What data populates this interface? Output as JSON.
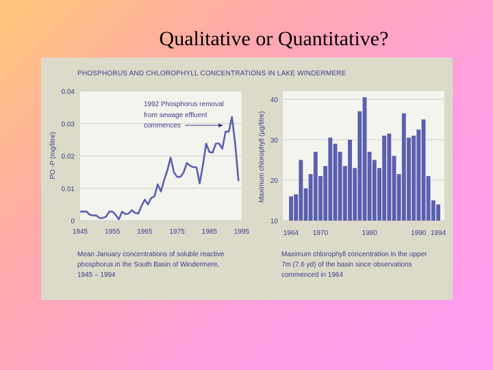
{
  "slide": {
    "title": "Qualitative or Quantitative?"
  },
  "figure": {
    "header": "PHOSPHORUS AND CHLOROPHYLL CONCENTRATIONS IN LAKE WINDERMERE"
  },
  "colors": {
    "series": "#5a5fb0",
    "text": "#3c3c8a",
    "panel": "#dcdbc9",
    "plot_bg": "#f4f4ee",
    "grid": "#cfcfc8"
  },
  "chart_data": [
    {
      "type": "line",
      "ylabel": "PO -P (mg/litre)",
      "ylim": [
        0,
        0.04
      ],
      "xlim": [
        1945,
        1995
      ],
      "x_ticks": [
        "1945",
        "1955",
        "1965",
        "1975",
        "1985",
        "1995"
      ],
      "y_ticks": [
        "0",
        "0.01",
        "0.02",
        "0.03",
        "0.04"
      ],
      "annotation": [
        "1992 Phosphorus removal",
        "from sewage effluent",
        "commences"
      ],
      "caption": [
        "Mean January concentrations of soluble reactive",
        "phosphorus in the South Basin of Windermere,",
        "1945 – 1994"
      ],
      "x": [
        1945,
        1946,
        1947,
        1948,
        1949,
        1950,
        1951,
        1952,
        1953,
        1954,
        1955,
        1956,
        1957,
        1958,
        1959,
        1960,
        1961,
        1962,
        1963,
        1964,
        1965,
        1966,
        1967,
        1968,
        1969,
        1970,
        1971,
        1972,
        1973,
        1974,
        1975,
        1976,
        1977,
        1978,
        1979,
        1980,
        1981,
        1982,
        1983,
        1984,
        1985,
        1986,
        1987,
        1988,
        1989,
        1990,
        1991,
        1992,
        1993,
        1994
      ],
      "y": [
        0.0028,
        0.0028,
        0.0028,
        0.0018,
        0.0016,
        0.0016,
        0.0008,
        0.0008,
        0.0012,
        0.0028,
        0.0028,
        0.0018,
        0.0004,
        0.0028,
        0.002,
        0.0022,
        0.0032,
        0.0024,
        0.0022,
        0.0045,
        0.0065,
        0.005,
        0.007,
        0.0075,
        0.0112,
        0.009,
        0.0125,
        0.0155,
        0.0195,
        0.015,
        0.0135,
        0.0135,
        0.0148,
        0.0178,
        0.017,
        0.0165,
        0.0165,
        0.0115,
        0.0172,
        0.0238,
        0.0212,
        0.021,
        0.0238,
        0.0238,
        0.0222,
        0.0275,
        0.0275,
        0.032,
        0.0235,
        0.0122
      ]
    },
    {
      "type": "bar",
      "ylabel": "Maximum chlorophyll (µg/litre)",
      "ylim": [
        10,
        42
      ],
      "x_ticks": [
        "1964",
        "1970",
        "1980",
        "1990",
        "1994"
      ],
      "y_ticks": [
        "10",
        "20",
        "30",
        "40"
      ],
      "caption": [
        "Maximum chlorophyll concentration in the upper",
        "7m (7.6 yd) of the basin since observations",
        "commenced in 1964"
      ],
      "categories": [
        "1964",
        "1965",
        "1966",
        "1967",
        "1968",
        "1969",
        "1970",
        "1971",
        "1972",
        "1973",
        "1974",
        "1975",
        "1976",
        "1977",
        "1978",
        "1979",
        "1980",
        "1981",
        "1982",
        "1983",
        "1984",
        "1985",
        "1986",
        "1987",
        "1988",
        "1989",
        "1990",
        "1991",
        "1992",
        "1993",
        "1994"
      ],
      "values": [
        16,
        16.5,
        25,
        18,
        21.5,
        27,
        21,
        23.5,
        30.5,
        29,
        27,
        23.5,
        30,
        23,
        37,
        40.5,
        27,
        25,
        23,
        31,
        31.5,
        26,
        21.5,
        36.5,
        30.5,
        31,
        32.5,
        35,
        21,
        15,
        14
      ]
    }
  ]
}
